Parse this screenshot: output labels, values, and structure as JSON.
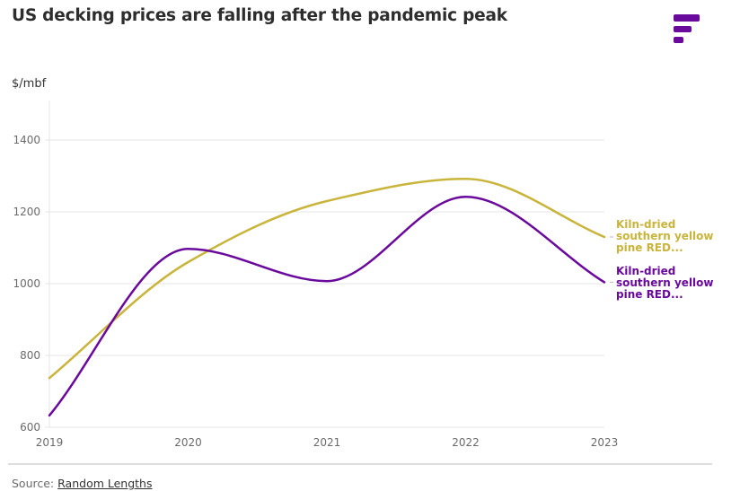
{
  "header": {
    "title": "US decking prices are falling after the pandemic peak",
    "logo": "brand-logo-icon"
  },
  "colors": {
    "series_yellow": "#c9b43c",
    "series_purple": "#6a0a9c",
    "grid": "#e6e6e6",
    "text": "#2d2d2d"
  },
  "footer": {
    "source_prefix": "Source:",
    "source_link": "Random Lengths"
  },
  "chart_data": {
    "type": "line",
    "title": "US decking prices are falling after the pandemic peak",
    "ylabel": "$/mbf",
    "xlabel": "",
    "x": [
      "2019",
      "2020",
      "2021",
      "2022",
      "2023"
    ],
    "ylim": [
      600,
      1500
    ],
    "yticks": [
      600,
      800,
      1000,
      1200,
      1400
    ],
    "grid": true,
    "legend_placement": "right-inline",
    "curve": "smooth",
    "series": [
      {
        "name": "Kiln-dried southern yellow pine RED...",
        "label_lines": [
          "Kiln-dried",
          "southern yellow",
          "pine RED..."
        ],
        "color": "#c9b43c",
        "values": [
          737,
          1060,
          1230,
          1292,
          1130
        ]
      },
      {
        "name": "Kiln-dried southern yellow pine RED...",
        "label_lines": [
          "Kiln-dried",
          "southern yellow",
          "pine RED..."
        ],
        "color": "#6a0a9c",
        "values": [
          633,
          1097,
          1007,
          1242,
          1004
        ]
      }
    ]
  }
}
